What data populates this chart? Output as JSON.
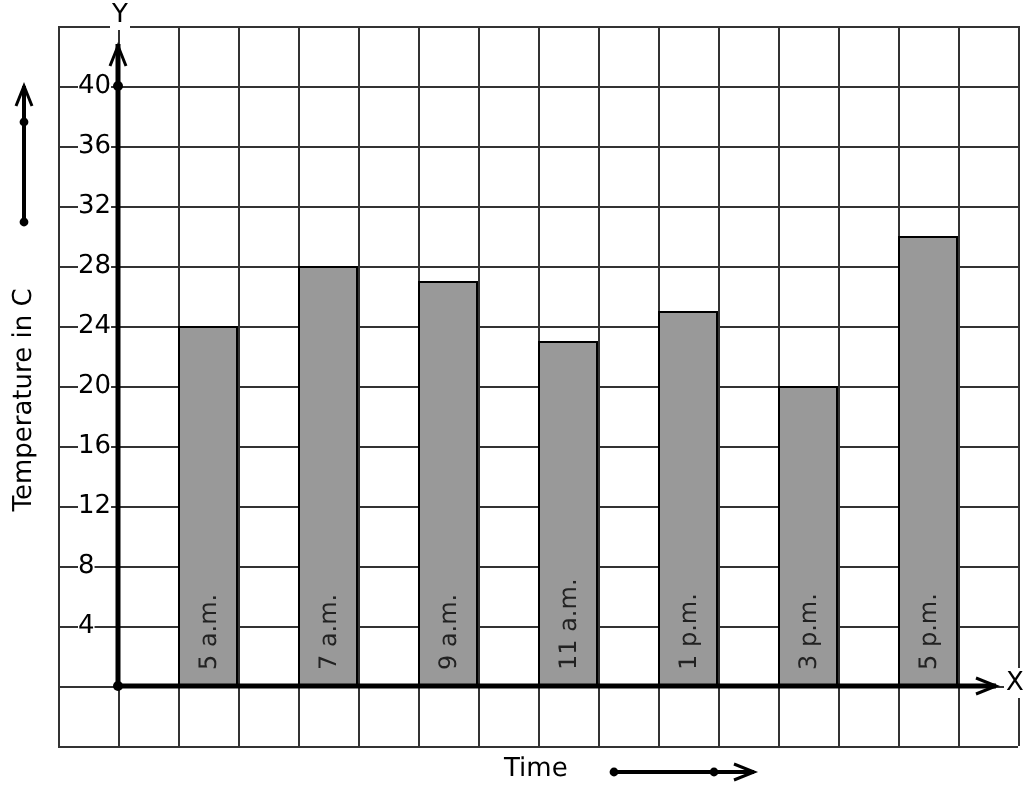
{
  "chart_data": {
    "type": "bar",
    "xlabel": "Time",
    "ylabel": "Temperature in C",
    "annotations": [
      "Y",
      "X"
    ],
    "categories": [
      "5 a.m.",
      "7 a.m.",
      "9 a.m.",
      "11 a.m.",
      "1 p.m.",
      "3 p.m.",
      "5 p.m."
    ],
    "values": [
      24,
      28,
      27,
      23,
      25,
      20,
      30
    ],
    "color": "#999999",
    "ylim": [
      -4,
      44
    ],
    "yticks": [
      4,
      8,
      12,
      16,
      20,
      24,
      28,
      32,
      36,
      40
    ],
    "grid": true
  }
}
